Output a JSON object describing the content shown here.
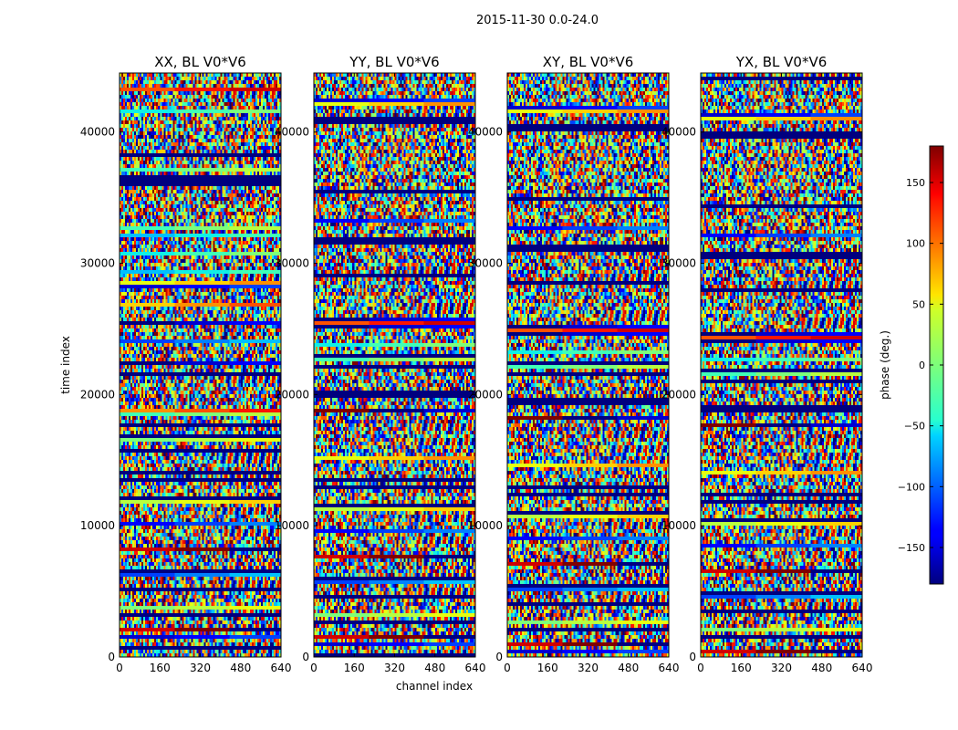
{
  "figure": {
    "suptitle": "2015-11-30 0.0-24.0"
  },
  "chart_data": {
    "type": "heatmap",
    "panels": [
      {
        "title": "XX, BL V0*V6"
      },
      {
        "title": "YY, BL V0*V6"
      },
      {
        "title": "XY, BL V0*V6"
      },
      {
        "title": "YX, BL V0*V6"
      }
    ],
    "xlabel": "channel index",
    "ylabel": "time index",
    "xlim": [
      0,
      640
    ],
    "ylim": [
      0,
      44500
    ],
    "xticks": [
      0,
      160,
      320,
      480,
      640
    ],
    "yticks": [
      0,
      10000,
      20000,
      30000,
      40000
    ],
    "colorbar": {
      "label": "phase (deg.)",
      "range": [
        -180,
        180
      ],
      "ticks": [
        -150,
        -100,
        -50,
        0,
        50,
        100,
        150
      ],
      "colormap": "jet"
    }
  }
}
